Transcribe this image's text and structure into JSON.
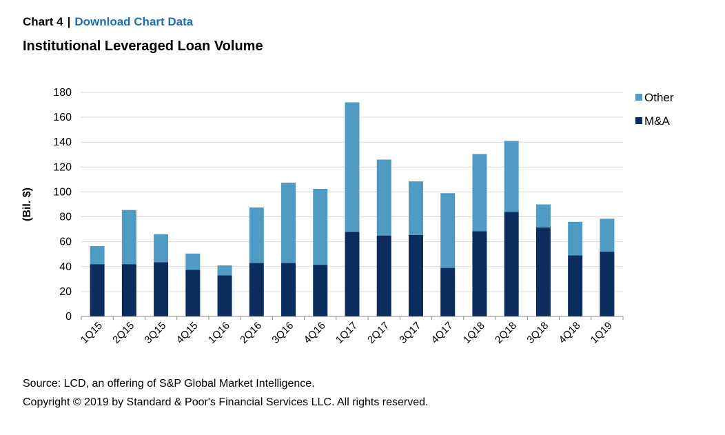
{
  "header": {
    "chart_number": "Chart 4",
    "separator": "|",
    "download_link": "Download Chart Data"
  },
  "footer": {
    "source": "Source: LCD, an offering of S&P Global Market Intelligence.",
    "copyright": "Copyright © 2019 by Standard & Poor's Financial Services LLC. All rights reserved."
  },
  "colors": {
    "other": "#4f9bc4",
    "ma": "#0b2d5e",
    "grid": "#d9d9d9",
    "axis": "#888888"
  },
  "chart_data": {
    "type": "bar",
    "stacked": true,
    "title": "Institutional Leveraged Loan Volume",
    "xlabel": "",
    "ylabel": "(Bil. $)",
    "ylim": [
      0,
      180
    ],
    "yticks": [
      0,
      20,
      40,
      60,
      80,
      100,
      120,
      140,
      160,
      180
    ],
    "grid": true,
    "legend_position": "top-right",
    "categories": [
      "1Q15",
      "2Q15",
      "3Q15",
      "4Q15",
      "1Q16",
      "2Q16",
      "3Q16",
      "4Q16",
      "1Q17",
      "2Q17",
      "3Q17",
      "4Q17",
      "1Q18",
      "2Q18",
      "3Q18",
      "4Q18",
      "1Q19"
    ],
    "series": [
      {
        "name": "M&A",
        "values": [
          42,
          42,
          43.5,
          37.5,
          33,
          43,
          43,
          41.5,
          68,
          65,
          65.5,
          39,
          68.5,
          84,
          71.5,
          49,
          52
        ]
      },
      {
        "name": "Other",
        "values": [
          14.5,
          43.5,
          22.5,
          13,
          8,
          44.5,
          64.5,
          61,
          104,
          61,
          43,
          60,
          62,
          57,
          18.5,
          27,
          26.5
        ]
      }
    ],
    "legend_order": [
      "Other",
      "M&A"
    ]
  }
}
